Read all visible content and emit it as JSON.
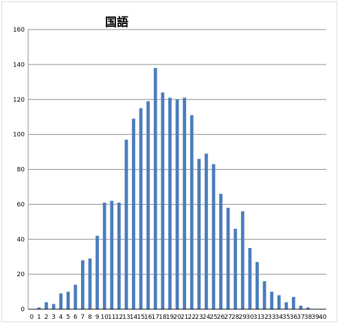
{
  "chart_data": {
    "type": "bar",
    "title": "国語",
    "xlabel": "",
    "ylabel": "",
    "ylim": [
      0,
      160
    ],
    "yticks": [
      0,
      20,
      40,
      60,
      80,
      100,
      120,
      140,
      160
    ],
    "grid": true,
    "legend": "none",
    "bar_color": "#4a7dbd",
    "categories": [
      "0",
      "1",
      "2",
      "3",
      "4",
      "5",
      "6",
      "7",
      "8",
      "9",
      "10",
      "11",
      "12",
      "13",
      "14",
      "15",
      "16",
      "17",
      "18",
      "19",
      "20",
      "21",
      "22",
      "23",
      "24",
      "25",
      "26",
      "27",
      "28",
      "29",
      "30",
      "31",
      "32",
      "33",
      "34",
      "35",
      "36",
      "37",
      "38",
      "39",
      "40"
    ],
    "values": [
      0,
      1,
      4,
      3,
      9,
      10,
      14,
      28,
      29,
      42,
      61,
      62,
      61,
      97,
      109,
      115,
      119,
      138,
      124,
      121,
      120,
      121,
      111,
      86,
      89,
      83,
      66,
      58,
      46,
      56,
      35,
      27,
      16,
      10,
      8,
      4,
      7,
      2,
      1,
      0,
      0
    ]
  }
}
